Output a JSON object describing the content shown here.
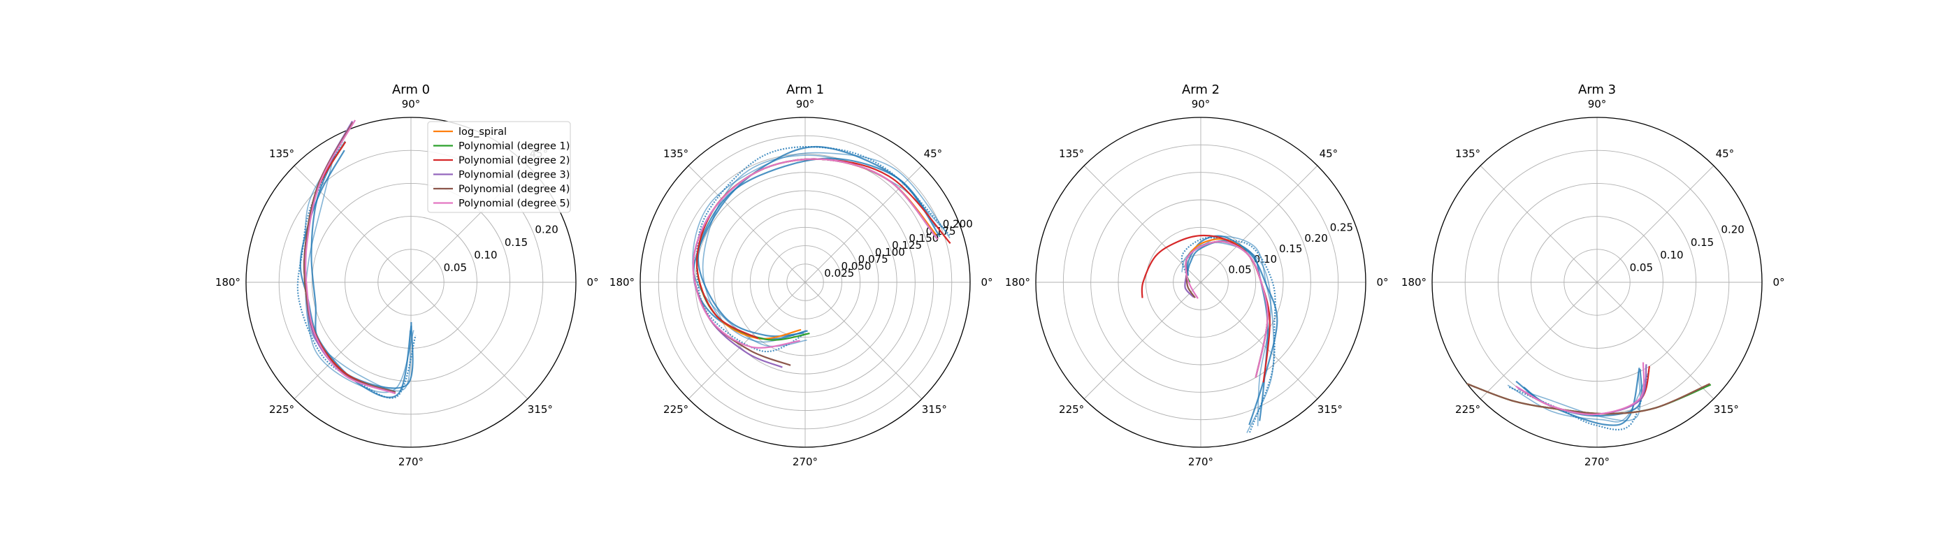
{
  "chart_data": [
    {
      "type": "line",
      "projection": "polar",
      "title": "Arm 0",
      "angle_ticks": [
        "0°",
        "45°",
        "90°",
        "135°",
        "180°",
        "225°",
        "270°",
        "315°"
      ],
      "radial_ticks": [
        "0.05",
        "0.10",
        "0.15",
        "0.20"
      ],
      "r_values": [
        0.05,
        0.1,
        0.15,
        0.2
      ],
      "rmax": 0.25,
      "grid": true,
      "legend": {
        "placement": "top-right",
        "entries": [
          "log_spiral",
          "Polynomial (degree 1)",
          "Polynomial (degree 2)",
          "Polynomial (degree 3)",
          "Polynomial (degree 4)",
          "Polynomial (degree 5)"
        ]
      },
      "series": [
        {
          "name": "log_spiral",
          "color": "#ff7f0e",
          "points": [
            [
              116,
              0.24
            ],
            [
              135,
              0.2
            ],
            [
              160,
              0.17
            ],
            [
              185,
              0.16
            ],
            [
              210,
              0.165
            ],
            [
              235,
              0.17
            ],
            [
              262,
              0.17
            ]
          ]
        },
        {
          "name": "Polynomial (degree 1)",
          "color": "#2ca02c",
          "points": [
            [
              115,
              0.235
            ],
            [
              135,
              0.2
            ],
            [
              160,
              0.17
            ],
            [
              185,
              0.16
            ],
            [
              210,
              0.165
            ],
            [
              235,
              0.17
            ],
            [
              262,
              0.17
            ]
          ]
        },
        {
          "name": "Polynomial (degree 2)",
          "color": "#d62728",
          "points": [
            [
              115,
              0.235
            ],
            [
              135,
              0.2
            ],
            [
              160,
              0.17
            ],
            [
              185,
              0.16
            ],
            [
              210,
              0.165
            ],
            [
              235,
              0.17
            ],
            [
              262,
              0.17
            ]
          ]
        },
        {
          "name": "Polynomial (degree 3)",
          "color": "#9467bd",
          "points": [
            [
              110,
              0.26
            ],
            [
              133,
              0.205
            ],
            [
              160,
              0.17
            ],
            [
              185,
              0.16
            ],
            [
              210,
              0.168
            ],
            [
              235,
              0.172
            ],
            [
              262,
              0.17
            ]
          ]
        },
        {
          "name": "Polynomial (degree 4)",
          "color": "#8c564b",
          "points": [
            [
              110,
              0.258
            ],
            [
              133,
              0.205
            ],
            [
              160,
              0.17
            ],
            [
              185,
              0.16
            ],
            [
              210,
              0.166
            ],
            [
              235,
              0.172
            ],
            [
              262,
              0.168
            ]
          ]
        },
        {
          "name": "Polynomial (degree 5)",
          "color": "#e377c2",
          "points": [
            [
              109,
              0.26
            ],
            [
              132,
              0.205
            ],
            [
              160,
              0.168
            ],
            [
              185,
              0.158
            ],
            [
              210,
              0.166
            ],
            [
              235,
              0.173
            ],
            [
              262,
              0.17
            ]
          ]
        }
      ],
      "observed": {
        "color": "#1f77b4",
        "points": [
          [
            118,
            0.23
          ],
          [
            140,
            0.19
          ],
          [
            165,
            0.165
          ],
          [
            190,
            0.16
          ],
          [
            215,
            0.17
          ],
          [
            240,
            0.17
          ],
          [
            265,
            0.165
          ],
          [
            272,
            0.07
          ]
        ]
      }
    },
    {
      "type": "line",
      "projection": "polar",
      "title": "Arm 1",
      "angle_ticks": [
        "0°",
        "45°",
        "90°",
        "135°",
        "180°",
        "225°",
        "270°",
        "315°"
      ],
      "radial_ticks": [
        "0.025",
        "0.050",
        "0.075",
        "0.100",
        "0.125",
        "0.150",
        "0.175",
        "0.200"
      ],
      "r_values": [
        0.025,
        0.05,
        0.075,
        0.1,
        0.125,
        0.15,
        0.175,
        0.2
      ],
      "rmax": 0.225,
      "grid": true,
      "series": [
        {
          "name": "log_spiral",
          "color": "#ff7f0e",
          "points": [
            [
              20,
              0.19
            ],
            [
              50,
              0.18
            ],
            [
              80,
              0.17
            ],
            [
              110,
              0.165
            ],
            [
              140,
              0.16
            ],
            [
              170,
              0.15
            ],
            [
              200,
              0.13
            ],
            [
              230,
              0.1
            ],
            [
              265,
              0.065
            ]
          ]
        },
        {
          "name": "Polynomial (degree 1)",
          "color": "#2ca02c",
          "points": [
            [
              18,
              0.19
            ],
            [
              50,
              0.18
            ],
            [
              80,
              0.17
            ],
            [
              110,
              0.165
            ],
            [
              140,
              0.16
            ],
            [
              170,
              0.15
            ],
            [
              200,
              0.13
            ],
            [
              235,
              0.095
            ],
            [
              275,
              0.07
            ]
          ]
        },
        {
          "name": "Polynomial (degree 2)",
          "color": "#d62728",
          "points": [
            [
              15,
              0.205
            ],
            [
              50,
              0.185
            ],
            [
              80,
              0.17
            ],
            [
              110,
              0.165
            ],
            [
              140,
              0.16
            ],
            [
              170,
              0.15
            ],
            [
              200,
              0.13
            ],
            [
              230,
              0.1
            ]
          ]
        },
        {
          "name": "Polynomial (degree 3)",
          "color": "#9467bd",
          "points": [
            [
              18,
              0.19
            ],
            [
              50,
              0.18
            ],
            [
              80,
              0.17
            ],
            [
              110,
              0.165
            ],
            [
              140,
              0.16
            ],
            [
              170,
              0.155
            ],
            [
              200,
              0.14
            ],
            [
              230,
              0.125
            ],
            [
              255,
              0.12
            ]
          ]
        },
        {
          "name": "Polynomial (degree 4)",
          "color": "#8c564b",
          "points": [
            [
              18,
              0.19
            ],
            [
              50,
              0.18
            ],
            [
              80,
              0.17
            ],
            [
              110,
              0.165
            ],
            [
              140,
              0.16
            ],
            [
              170,
              0.155
            ],
            [
              200,
              0.14
            ],
            [
              230,
              0.12
            ],
            [
              260,
              0.115
            ]
          ]
        },
        {
          "name": "Polynomial (degree 5)",
          "color": "#e377c2",
          "points": [
            [
              18,
              0.19
            ],
            [
              50,
              0.18
            ],
            [
              80,
              0.17
            ],
            [
              110,
              0.165
            ],
            [
              140,
              0.16
            ],
            [
              170,
              0.155
            ],
            [
              200,
              0.14
            ],
            [
              230,
              0.115
            ],
            [
              265,
              0.08
            ]
          ]
        }
      ],
      "observed": {
        "color": "#1f77b4",
        "points": [
          [
            20,
            0.2
          ],
          [
            50,
            0.19
          ],
          [
            80,
            0.18
          ],
          [
            110,
            0.17
          ],
          [
            140,
            0.16
          ],
          [
            170,
            0.15
          ],
          [
            200,
            0.13
          ],
          [
            235,
            0.1
          ],
          [
            270,
            0.07
          ]
        ]
      }
    },
    {
      "type": "line",
      "projection": "polar",
      "title": "Arm 2",
      "angle_ticks": [
        "0°",
        "45°",
        "90°",
        "135°",
        "180°",
        "225°",
        "270°",
        "315°"
      ],
      "radial_ticks": [
        "0.05",
        "0.10",
        "0.15",
        "0.20",
        "0.25"
      ],
      "r_values": [
        0.05,
        0.1,
        0.15,
        0.2,
        0.25
      ],
      "rmax": 0.3,
      "grid": true,
      "series": [
        {
          "name": "log_spiral",
          "color": "#ff7f0e",
          "points": [
            [
              300,
              0.2
            ],
            [
              330,
              0.14
            ],
            [
              0,
              0.11
            ],
            [
              30,
              0.1
            ],
            [
              60,
              0.09
            ],
            [
              90,
              0.07
            ],
            [
              120,
              0.05
            ],
            [
              150,
              0.03
            ]
          ]
        },
        {
          "name": "Polynomial (degree 1)",
          "color": "#2ca02c",
          "points": [
            [
              300,
              0.2
            ],
            [
              330,
              0.14
            ],
            [
              0,
              0.11
            ],
            [
              30,
              0.1
            ],
            [
              60,
              0.085
            ],
            [
              90,
              0.065
            ],
            [
              120,
              0.05
            ],
            [
              150,
              0.03
            ],
            [
              180,
              0.02
            ]
          ]
        },
        {
          "name": "Polynomial (degree 2)",
          "color": "#d62728",
          "points": [
            [
              302,
              0.215
            ],
            [
              330,
              0.145
            ],
            [
              0,
              0.11
            ],
            [
              30,
              0.1
            ],
            [
              60,
              0.09
            ],
            [
              90,
              0.085
            ],
            [
              120,
              0.085
            ],
            [
              150,
              0.095
            ],
            [
              180,
              0.105
            ],
            [
              195,
              0.11
            ]
          ]
        },
        {
          "name": "Polynomial (degree 3)",
          "color": "#9467bd",
          "points": [
            [
              300,
              0.2
            ],
            [
              330,
              0.14
            ],
            [
              0,
              0.11
            ],
            [
              30,
              0.1
            ],
            [
              60,
              0.085
            ],
            [
              90,
              0.065
            ],
            [
              120,
              0.05
            ],
            [
              150,
              0.03
            ],
            [
              200,
              0.03
            ],
            [
              245,
              0.03
            ]
          ]
        },
        {
          "name": "Polynomial (degree 4)",
          "color": "#8c564b",
          "points": [
            [
              300,
              0.2
            ],
            [
              330,
              0.14
            ],
            [
              0,
              0.11
            ],
            [
              30,
              0.1
            ],
            [
              60,
              0.085
            ],
            [
              90,
              0.065
            ],
            [
              120,
              0.05
            ],
            [
              150,
              0.03
            ],
            [
              200,
              0.025
            ],
            [
              250,
              0.03
            ]
          ]
        },
        {
          "name": "Polynomial (degree 5)",
          "color": "#e377c2",
          "points": [
            [
              300,
              0.2
            ],
            [
              330,
              0.14
            ],
            [
              0,
              0.11
            ],
            [
              30,
              0.1
            ],
            [
              60,
              0.085
            ],
            [
              90,
              0.065
            ],
            [
              120,
              0.05
            ],
            [
              150,
              0.03
            ],
            [
              200,
              0.02
            ],
            [
              260,
              0.03
            ]
          ]
        }
      ],
      "observed": {
        "color": "#1f77b4",
        "points": [
          [
            290,
            0.28
          ],
          [
            305,
            0.21
          ],
          [
            330,
            0.15
          ],
          [
            0,
            0.12
          ],
          [
            30,
            0.11
          ],
          [
            60,
            0.09
          ],
          [
            90,
            0.07
          ],
          [
            120,
            0.05
          ],
          [
            150,
            0.03
          ]
        ]
      }
    },
    {
      "type": "line",
      "projection": "polar",
      "title": "Arm 3",
      "angle_ticks": [
        "0°",
        "45°",
        "90°",
        "135°",
        "180°",
        "225°",
        "270°",
        "315°"
      ],
      "radial_ticks": [
        "0.05",
        "0.10",
        "0.15",
        "0.20"
      ],
      "r_values": [
        0.05,
        0.1,
        0.15,
        0.2
      ],
      "rmax": 0.25,
      "grid": true,
      "series": [
        {
          "name": "log_spiral",
          "color": "#ff7f0e",
          "points": [
            [
              218,
              0.25
            ],
            [
              235,
              0.22
            ],
            [
              255,
              0.2
            ],
            [
              275,
              0.2
            ],
            [
              295,
              0.21
            ],
            [
              318,
              0.23
            ]
          ]
        },
        {
          "name": "Polynomial (degree 1)",
          "color": "#2ca02c",
          "points": [
            [
              218,
              0.25
            ],
            [
              235,
              0.22
            ],
            [
              255,
              0.2
            ],
            [
              275,
              0.2
            ],
            [
              295,
              0.21
            ],
            [
              318,
              0.232
            ]
          ]
        },
        {
          "name": "Polynomial (degree 2)",
          "color": "#d62728",
          "points": [
            [
              233,
              0.2
            ],
            [
              250,
              0.2
            ],
            [
              270,
              0.2
            ],
            [
              290,
              0.19
            ],
            [
              302,
              0.15
            ]
          ]
        },
        {
          "name": "Polynomial (degree 3)",
          "color": "#9467bd",
          "points": [
            [
              233,
              0.2
            ],
            [
              250,
              0.2
            ],
            [
              270,
              0.2
            ],
            [
              290,
              0.19
            ],
            [
              301,
              0.145
            ]
          ]
        },
        {
          "name": "Polynomial (degree 4)",
          "color": "#8c564b",
          "points": [
            [
              218,
              0.25
            ],
            [
              235,
              0.22
            ],
            [
              255,
              0.2
            ],
            [
              275,
              0.2
            ],
            [
              295,
              0.21
            ],
            [
              318,
              0.23
            ]
          ]
        },
        {
          "name": "Polynomial (degree 5)",
          "color": "#e377c2",
          "points": [
            [
              232,
              0.2
            ],
            [
              250,
              0.2
            ],
            [
              270,
              0.2
            ],
            [
              290,
              0.188
            ],
            [
              300,
              0.14
            ]
          ]
        }
      ],
      "observed": {
        "color": "#1f77b4",
        "points": [
          [
            232,
            0.2
          ],
          [
            250,
            0.2
          ],
          [
            270,
            0.21
          ],
          [
            285,
            0.21
          ],
          [
            298,
            0.15
          ]
        ]
      }
    }
  ]
}
